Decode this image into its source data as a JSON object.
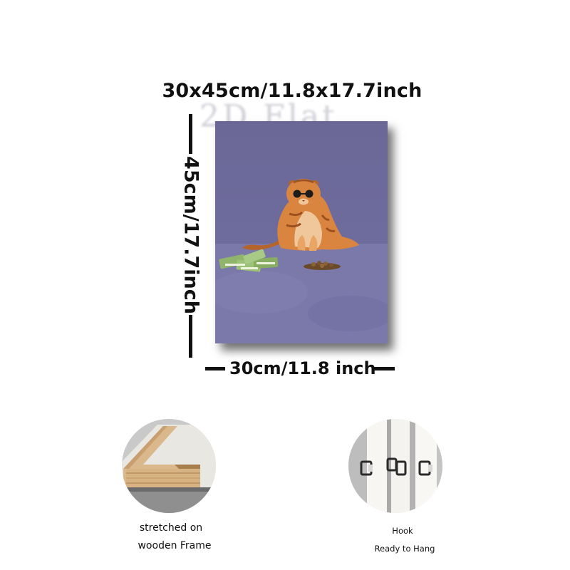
{
  "dimensions": {
    "overall": "30x45cm/11.8x17.7inch",
    "height": "45cm/17.7inch",
    "width": "30cm/11.8 inch"
  },
  "watermark": "2D Flat",
  "features": [
    {
      "lines": [
        "stretched on",
        "wooden Frame"
      ],
      "icon": "wooden-frame-closeup"
    },
    {
      "lines": [
        "Hook",
        "Ready to Hang"
      ],
      "icon": "hanging-hook-closeup"
    }
  ],
  "colors": {
    "canvas_background": "#6f6d9c",
    "cat": "#d9853f",
    "money": "#8fb46a"
  }
}
